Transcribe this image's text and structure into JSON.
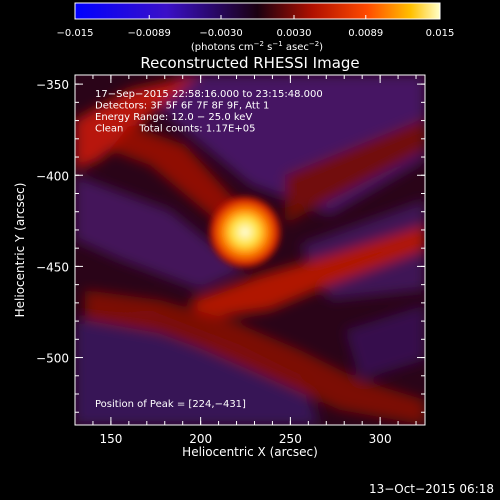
{
  "colorbar": {
    "ticks": [
      {
        "value": -0.015,
        "label": "−0.015"
      },
      {
        "value": -0.0089,
        "label": "−0.0089"
      },
      {
        "value": -0.003,
        "label": "−0.0030"
      },
      {
        "value": 0.003,
        "label": "0.0030"
      },
      {
        "value": 0.0089,
        "label": "0.0089"
      },
      {
        "value": 0.015,
        "label": "0.015"
      }
    ],
    "range": [
      -0.015,
      0.015
    ],
    "units_a": "(photons cm",
    "units_exp1": "−2",
    "units_b": " s",
    "units_exp2": "−1",
    "units_c": " asec",
    "units_exp3": "−2",
    "units_d": ")"
  },
  "chart_data": {
    "type": "heatmap",
    "title": "Reconstructed RHESSI Image",
    "xlabel": "Heliocentric X (arcsec)",
    "ylabel": "Heliocentric Y (arcsec)",
    "xlim": [
      130,
      325
    ],
    "ylim": [
      -537,
      -345
    ],
    "xticks": [
      150,
      200,
      250,
      300
    ],
    "yticks": [
      -350,
      -400,
      -450,
      -500
    ],
    "xtick_labels": [
      "150",
      "200",
      "250",
      "300"
    ],
    "ytick_labels": [
      "−350",
      "−400",
      "−450",
      "−500"
    ],
    "annotations": [
      "17−Sep−2015 22:58:16.000 to 23:15:48.000",
      "Detectors: 3F 5F 6F 7F 8F 9F, Att 1",
      "Energy Range: 12.0 − 25.0 keV",
      "Clean     Total counts: 1.17E+05"
    ],
    "peak_label": "Position of Peak = [224,−431]",
    "peak": [
      224,
      -431
    ],
    "grid": false
  },
  "timestamp": "13−Oct−2015 06:18"
}
